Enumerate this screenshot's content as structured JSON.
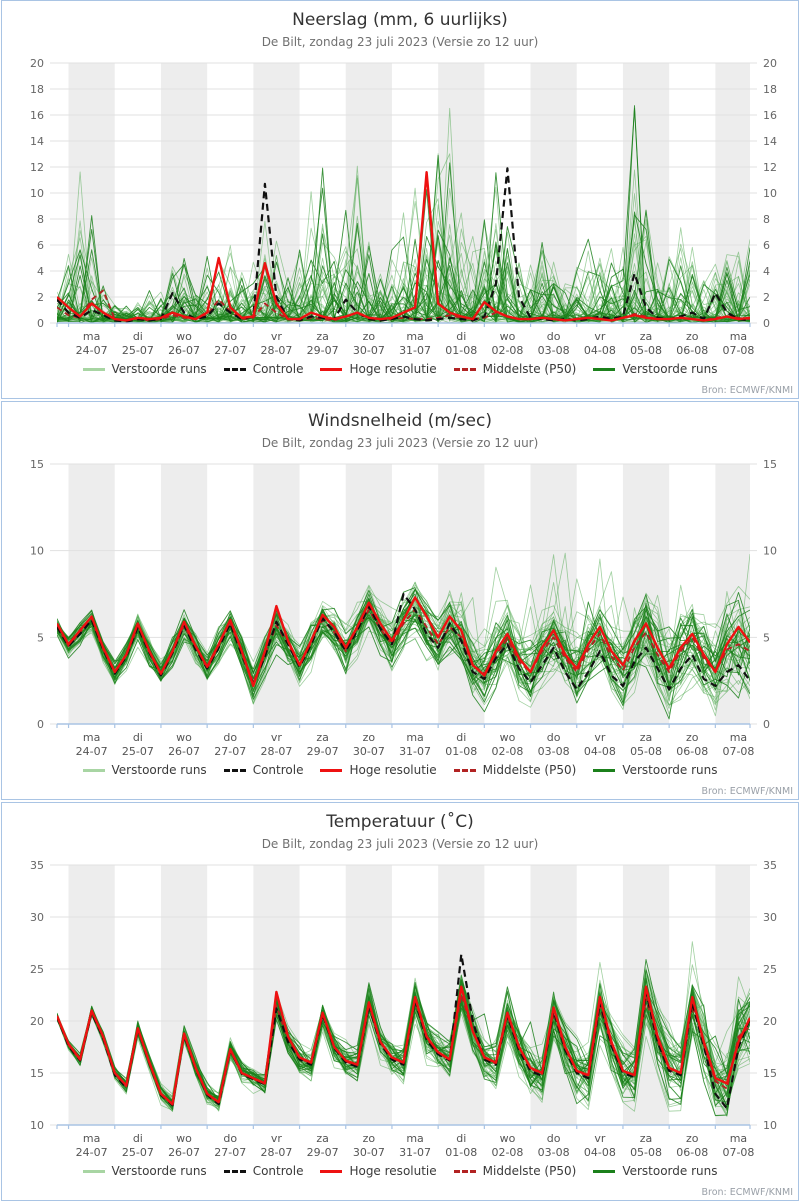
{
  "source": "Bron: ECMWF/KNMI",
  "colors": {
    "panel_border": "#a9c4e4",
    "axis_spine": "#a9c4e4",
    "grid": "#e1e1e1",
    "day_band": "#ededed",
    "tick_text": "#666666",
    "day_text": "#555555",
    "ensemble_light": "#44a344",
    "ensemble_dark": "#1b801b",
    "legend_light_green": "#a8d5a3",
    "legend_dark_green": "#1b801b",
    "controle": "#111111",
    "hoge_resolutie": "#ee1111",
    "middelste": "#b22222"
  },
  "x_axis": {
    "steps_per_day": 4,
    "lead_offset_steps": 1,
    "days": [
      {
        "dow": "ma",
        "date": "24-07"
      },
      {
        "dow": "di",
        "date": "25-07"
      },
      {
        "dow": "wo",
        "date": "26-07"
      },
      {
        "dow": "do",
        "date": "27-07"
      },
      {
        "dow": "vr",
        "date": "28-07"
      },
      {
        "dow": "za",
        "date": "29-07"
      },
      {
        "dow": "zo",
        "date": "30-07"
      },
      {
        "dow": "ma",
        "date": "31-07"
      },
      {
        "dow": "di",
        "date": "01-08"
      },
      {
        "dow": "wo",
        "date": "02-08"
      },
      {
        "dow": "do",
        "date": "03-08"
      },
      {
        "dow": "vr",
        "date": "04-08"
      },
      {
        "dow": "za",
        "date": "05-08"
      },
      {
        "dow": "zo",
        "date": "06-08"
      },
      {
        "dow": "ma",
        "date": "07-08"
      }
    ]
  },
  "legend": [
    {
      "label": "Verstoorde runs",
      "color": "#a8d5a3",
      "dash": false
    },
    {
      "label": "Controle",
      "color": "#111111",
      "dash": true
    },
    {
      "label": "Hoge resolutie",
      "color": "#ee1111",
      "dash": false
    },
    {
      "label": "Middelste (P50)",
      "color": "#b22222",
      "dash": true
    },
    {
      "label": "Verstoorde runs",
      "color": "#1b801b",
      "dash": false
    }
  ],
  "chart_data": [
    {
      "type": "line",
      "title": "Neerslag (mm, 6 uurlijks)",
      "subtitle": "De Bilt, zondag 23 juli 2023 (Versie zo 12 uur)",
      "ylim": [
        0,
        20
      ],
      "ytick_step": 2,
      "grid": true,
      "legend_position": "bottom",
      "series": {
        "controle": [
          1.8,
          0.8,
          0.4,
          1.0,
          0.6,
          0.2,
          0.1,
          0.3,
          0.2,
          0.3,
          2.3,
          0.8,
          0.3,
          0.5,
          1.5,
          0.8,
          0.3,
          0.5,
          10.7,
          2.0,
          0.3,
          0.2,
          0.5,
          0.4,
          0.3,
          1.8,
          0.8,
          0.3,
          0.2,
          0.3,
          0.5,
          0.3,
          0.2,
          0.3,
          0.4,
          0.3,
          0.2,
          0.5,
          3.0,
          11.9,
          2.0,
          0.4,
          0.3,
          0.2,
          0.3,
          0.2,
          0.3,
          0.5,
          0.3,
          0.5,
          3.8,
          1.2,
          0.4,
          0.3,
          0.5,
          0.8,
          0.3,
          2.3,
          0.8,
          0.3,
          0.2
        ],
        "hoge_resolutie": [
          2.0,
          1.2,
          0.5,
          1.5,
          0.8,
          0.3,
          0.2,
          0.4,
          0.3,
          0.4,
          0.8,
          0.5,
          0.3,
          0.8,
          5.0,
          1.2,
          0.4,
          0.5,
          4.6,
          1.5,
          0.3,
          0.3,
          0.8,
          0.5,
          0.3,
          0.5,
          0.8,
          0.4,
          0.3,
          0.4,
          0.8,
          1.2,
          11.6,
          1.5,
          0.8,
          0.5,
          0.3,
          1.6,
          0.9,
          0.5,
          0.3,
          0.3,
          0.4,
          0.3,
          0.2,
          0.3,
          0.4,
          0.3,
          0.2,
          0.4,
          0.6,
          0.4,
          0.3,
          0.3,
          0.4,
          0.3,
          0.2,
          0.3,
          0.5,
          0.3,
          0.4
        ],
        "middelste": [
          1.2,
          0.6,
          0.4,
          1.8,
          2.5,
          0.3,
          0.2,
          0.3,
          0.2,
          0.3,
          0.6,
          0.4,
          0.3,
          0.6,
          1.8,
          0.9,
          0.3,
          0.4,
          1.5,
          0.8,
          0.3,
          0.2,
          0.4,
          0.3,
          0.2,
          0.5,
          0.8,
          0.4,
          0.2,
          0.3,
          0.4,
          0.3,
          0.3,
          0.4,
          0.6,
          0.4,
          0.3,
          0.4,
          0.8,
          0.5,
          0.3,
          0.3,
          0.4,
          0.3,
          0.2,
          0.3,
          0.4,
          0.3,
          0.2,
          0.4,
          0.7,
          0.5,
          0.3,
          0.3,
          0.4,
          0.3,
          0.2,
          0.4,
          0.5,
          0.4,
          0.3
        ]
      },
      "ensemble": {
        "n_members": 50,
        "seed": 11,
        "mode": "precip",
        "max_envelope": [
          3,
          6,
          11.7,
          9,
          4,
          1.5,
          1.2,
          1.8,
          2.5,
          4,
          6.2,
          5.5,
          3.5,
          6,
          8.2,
          7,
          4.5,
          8,
          11.3,
          9,
          5,
          7,
          11,
          13.4,
          6,
          9,
          13,
          8,
          5,
          6,
          9,
          12,
          14,
          15.6,
          18.9,
          10,
          7,
          8,
          12,
          9,
          5,
          5,
          8,
          6,
          4,
          5,
          9,
          7,
          6,
          8,
          17.1,
          10,
          5,
          6,
          8,
          7,
          4,
          5,
          8.7,
          6,
          8.7,
          6
        ]
      }
    },
    {
      "type": "line",
      "title": "Windsnelheid (m/sec)",
      "subtitle": "De Bilt, zondag 23 juli 2023 (Versie zo 12 uur)",
      "ylim": [
        0,
        15
      ],
      "ytick_step": 5,
      "grid": true,
      "legend_position": "bottom",
      "series": {
        "controle": [
          5.6,
          4.5,
          5.2,
          6.0,
          4.3,
          2.9,
          3.9,
          5.6,
          4.1,
          2.8,
          4.1,
          5.7,
          4.3,
          3.2,
          4.4,
          5.8,
          4.0,
          2.3,
          3.9,
          5.9,
          4.6,
          3.3,
          4.6,
          6.1,
          5.3,
          4.2,
          5.4,
          6.8,
          5.5,
          4.6,
          7.5,
          6.6,
          5.2,
          4.4,
          5.8,
          4.8,
          3.0,
          2.6,
          3.8,
          4.6,
          3.2,
          2.4,
          3.4,
          4.4,
          3.0,
          2.0,
          3.0,
          4.2,
          2.8,
          2.2,
          3.6,
          4.4,
          3.2,
          2.0,
          3.2,
          4.0,
          2.6,
          2.2,
          3.0,
          3.4,
          2.5
        ],
        "hoge_resolutie": [
          5.8,
          4.6,
          5.4,
          6.2,
          4.4,
          3.0,
          4.0,
          5.8,
          4.2,
          2.9,
          4.2,
          5.9,
          4.5,
          3.3,
          4.6,
          6.0,
          4.2,
          2.2,
          4.2,
          6.8,
          4.8,
          3.4,
          4.8,
          6.3,
          5.6,
          4.4,
          5.6,
          7.0,
          5.8,
          4.8,
          6.0,
          7.3,
          6.2,
          5.0,
          6.2,
          5.4,
          3.4,
          2.8,
          4.2,
          5.2,
          3.8,
          3.0,
          4.4,
          5.4,
          4.0,
          3.2,
          4.6,
          5.6,
          4.2,
          3.4,
          4.8,
          5.8,
          4.4,
          3.2,
          4.4,
          5.2,
          4.0,
          3.0,
          4.6,
          5.6,
          4.7
        ],
        "middelste": [
          5.6,
          4.5,
          5.3,
          6.0,
          4.3,
          3.0,
          4.0,
          5.6,
          4.1,
          2.9,
          4.1,
          5.7,
          4.4,
          3.2,
          4.5,
          5.8,
          4.2,
          2.4,
          4.0,
          5.7,
          4.6,
          3.4,
          4.7,
          6.0,
          5.3,
          4.2,
          5.4,
          6.6,
          5.5,
          4.6,
          5.8,
          6.6,
          5.6,
          4.6,
          5.6,
          5.0,
          3.4,
          2.9,
          4.0,
          4.9,
          3.6,
          3.0,
          4.2,
          5.0,
          3.8,
          3.0,
          4.3,
          5.2,
          3.9,
          3.1,
          4.4,
          5.3,
          4.0,
          3.0,
          4.2,
          5.0,
          3.8,
          3.0,
          4.3,
          4.6,
          4.2
        ]
      },
      "ensemble": {
        "n_members": 50,
        "seed": 23,
        "mode": "smooth",
        "sigma": [
          0.45,
          1.9
        ],
        "amp_jitter": 0.5,
        "clamp_min": 0.25,
        "spike": 4.5,
        "spike_prob": 0.035,
        "spike_after": 0.55
      }
    },
    {
      "type": "line",
      "title": "Temperatuur (˚C)",
      "subtitle": "De Bilt, zondag 23 juli 2023 (Versie zo 12 uur)",
      "ylim": [
        10,
        35
      ],
      "ytick_step": 5,
      "grid": true,
      "legend_position": "bottom",
      "series": {
        "controle": [
          20.4,
          17.6,
          16.2,
          20.8,
          18.3,
          14.8,
          13.6,
          19.2,
          15.9,
          12.9,
          11.9,
          18.6,
          15.4,
          12.9,
          12.0,
          17.2,
          14.9,
          14.4,
          13.9,
          21.2,
          18.0,
          16.3,
          15.8,
          20.6,
          17.4,
          16.0,
          15.6,
          21.5,
          17.8,
          16.3,
          15.8,
          22.0,
          18.2,
          16.8,
          16.2,
          26.4,
          20.0,
          16.3,
          15.8,
          20.5,
          17.2,
          15.2,
          14.7,
          21.0,
          17.2,
          15.0,
          14.5,
          21.8,
          17.6,
          15.0,
          14.6,
          22.8,
          18.0,
          15.2,
          14.8,
          21.8,
          17.6,
          13.0,
          11.6,
          17.5,
          20.2
        ],
        "hoge_resolutie": [
          20.5,
          17.8,
          16.3,
          21.0,
          18.5,
          15.0,
          13.8,
          19.3,
          16.0,
          13.0,
          12.0,
          18.8,
          15.5,
          13.0,
          12.2,
          17.3,
          15.0,
          14.5,
          14.0,
          22.8,
          18.5,
          16.5,
          16.0,
          20.8,
          17.5,
          16.2,
          15.8,
          21.8,
          18.0,
          16.5,
          16.0,
          22.3,
          18.5,
          17.0,
          16.3,
          23.3,
          19.0,
          16.5,
          16.0,
          20.8,
          17.5,
          15.5,
          15.0,
          21.3,
          17.5,
          15.2,
          14.8,
          22.3,
          18.0,
          15.2,
          14.8,
          23.3,
          18.5,
          15.5,
          15.0,
          22.3,
          18.0,
          14.5,
          14.0,
          18.0,
          20.3
        ],
        "middelste": [
          20.4,
          17.7,
          16.2,
          20.9,
          18.4,
          14.9,
          13.7,
          19.2,
          16.0,
          13.0,
          12.0,
          18.7,
          15.5,
          13.0,
          12.1,
          17.2,
          15.0,
          14.4,
          14.0,
          21.5,
          18.2,
          16.4,
          15.9,
          20.7,
          17.5,
          16.1,
          15.7,
          21.6,
          17.9,
          16.4,
          15.9,
          22.1,
          18.3,
          16.9,
          16.3,
          22.5,
          19.0,
          16.4,
          15.9,
          20.6,
          17.4,
          15.4,
          14.9,
          20.8,
          17.3,
          15.1,
          14.7,
          21.5,
          17.7,
          15.1,
          14.7,
          22.2,
          18.1,
          15.3,
          14.9,
          21.5,
          17.8,
          14.2,
          13.5,
          18.5,
          19.5
        ]
      },
      "ensemble": {
        "n_members": 50,
        "seed": 37,
        "mode": "smooth",
        "sigma": [
          0.35,
          2.6
        ],
        "amp_jitter": 0.5,
        "clamp_min": 10.8,
        "spike": 3.5,
        "spike_prob": 0.03,
        "spike_after": 0.6
      }
    }
  ]
}
